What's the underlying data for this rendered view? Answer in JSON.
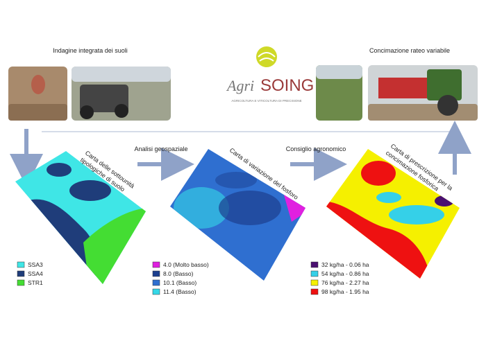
{
  "header": {
    "left_title": "Indagine integrata dei suoli",
    "right_title": "Concimazione rateo variabile"
  },
  "logo": {
    "name_a": "Agri",
    "name_b": "SOING",
    "tagline": "AGRICOLTURA E VITICOLTURA DI PRECISIONE"
  },
  "steps": {
    "step_1": "Analisi geospaziale",
    "step_2": "Consiglio agronomico"
  },
  "maps": [
    {
      "title": [
        "Carta delle sottounità",
        "tipologiche di suolo"
      ],
      "legend": [
        {
          "label": "SSA3",
          "color": "#3fe6e6"
        },
        {
          "label": "SSA4",
          "color": "#1f3d7a"
        },
        {
          "label": "STR1",
          "color": "#44dd33"
        }
      ]
    },
    {
      "title": [
        "Carta di variazione del fosforo"
      ],
      "legend": [
        {
          "label": "4.0 (Molto basso)",
          "color": "#e020e0"
        },
        {
          "label": "8.0 (Basso)",
          "color": "#1c3f8f"
        },
        {
          "label": "10.1 (Basso)",
          "color": "#2f6fd0"
        },
        {
          "label": "11.4 (Basso)",
          "color": "#35d8e8"
        }
      ]
    },
    {
      "title": [
        "Carta di prescrizione per la",
        "concimazione fosforica"
      ],
      "legend": [
        {
          "label": "32 kg/ha - 0.06 ha",
          "color": "#4a1070"
        },
        {
          "label": "54 kg/ha - 0.86 ha",
          "color": "#35d0e8"
        },
        {
          "label": "76 kg/ha - 2.27 ha",
          "color": "#f5f000"
        },
        {
          "label": "98 kg/ha - 1.95 ha",
          "color": "#ee1111"
        }
      ]
    }
  ]
}
